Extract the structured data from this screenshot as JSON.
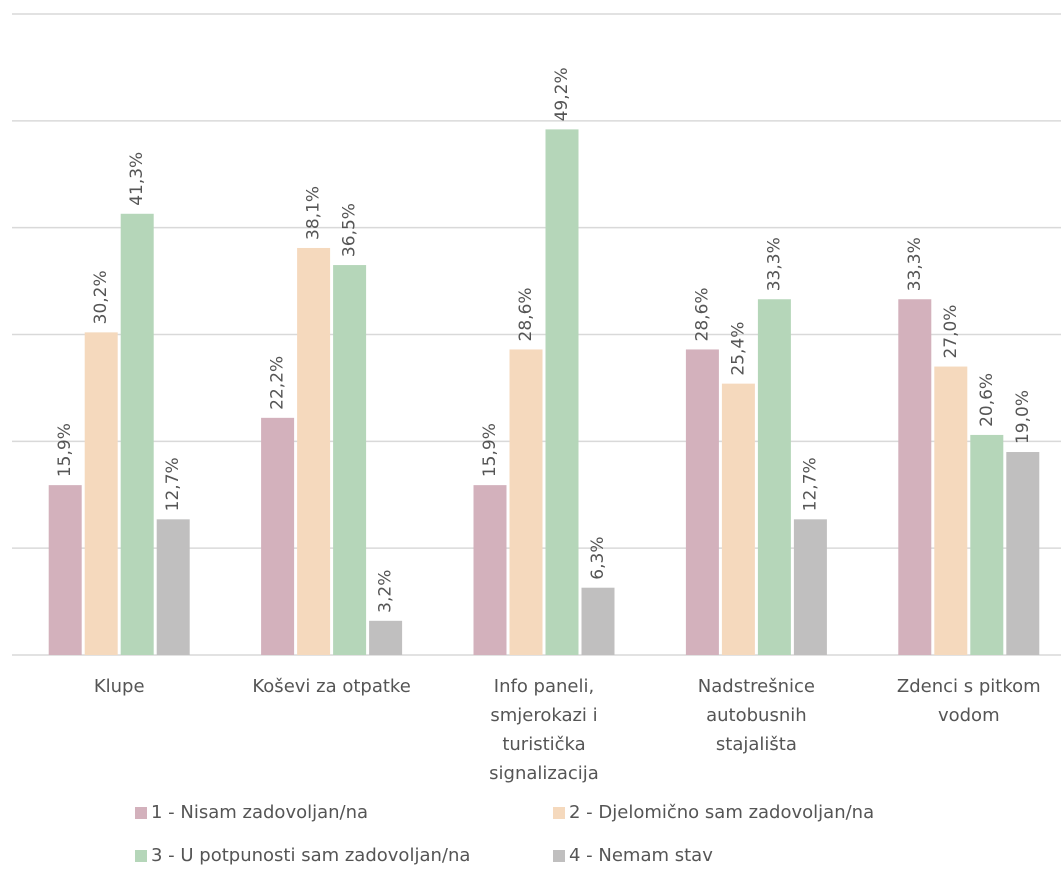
{
  "chart_data": {
    "type": "bar",
    "categories": [
      "Klupe",
      "Koševi za otpatke",
      "Info paneli,\nsmjerokazi i\nturistička\nsignalizacija",
      "Nadstrešnice\nautobusnih\nstajališta",
      "Zdenci s pitkom\nvodom"
    ],
    "series": [
      {
        "name": "1 - Nisam zadovoljan/na",
        "color": "#d3b1bc",
        "values": [
          15.9,
          22.2,
          15.9,
          28.6,
          33.3
        ],
        "value_labels": [
          "15,9%",
          "22,2%",
          "15,9%",
          "28,6%",
          "33,3%"
        ]
      },
      {
        "name": "2 - Djelomično sam zadovoljan/na",
        "color": "#f5d9bd",
        "values": [
          30.2,
          38.1,
          28.6,
          25.4,
          27.0
        ],
        "value_labels": [
          "30,2%",
          "38,1%",
          "28,6%",
          "25,4%",
          "27,0%"
        ]
      },
      {
        "name": "3 - U potpunosti sam zadovoljan/na",
        "color": "#b5d6b9",
        "values": [
          41.3,
          36.5,
          49.2,
          33.3,
          20.6
        ],
        "value_labels": [
          "41,3%",
          "36,5%",
          "49,2%",
          "33,3%",
          "20,6%"
        ]
      },
      {
        "name": "4 - Nemam stav",
        "color": "#c0bfbf",
        "values": [
          12.7,
          3.2,
          6.3,
          12.7,
          19.0
        ],
        "value_labels": [
          "12,7%",
          "3,2%",
          "6,3%",
          "12,7%",
          "19,0%"
        ]
      }
    ],
    "ylim": [
      0,
      60
    ],
    "yticks": [
      0,
      10,
      20,
      30,
      40,
      50,
      60
    ],
    "grid": true
  }
}
